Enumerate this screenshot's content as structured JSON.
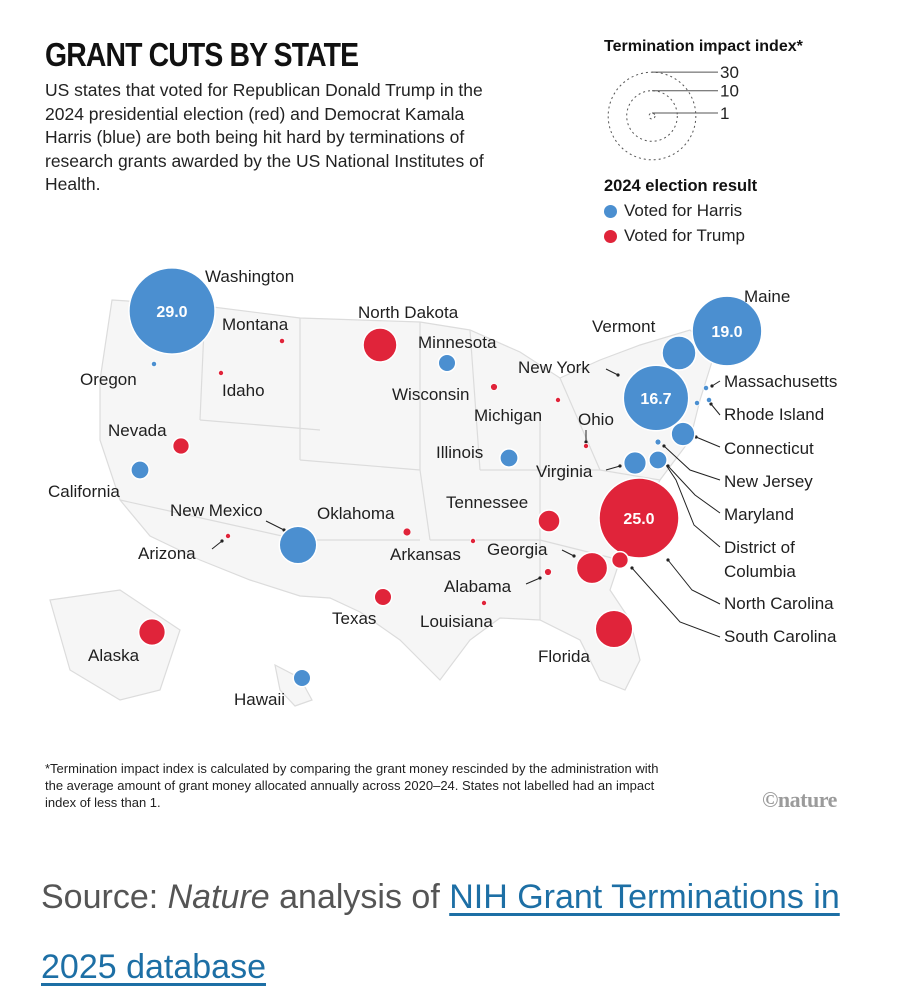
{
  "header": {
    "title": "GRANT CUTS BY STATE",
    "subtitle": "US states that voted for Republican Donald Trump in the 2024 presidential election (red) and Democrat Kamala Harris (blue) are both being hit hard by terminations of research grants awarded by the US National Institutes of Health."
  },
  "legend": {
    "size_title": "Termination impact index*",
    "size_rings": [
      "30",
      "10",
      "1"
    ],
    "election_title": "2024 election result",
    "harris_label": "Voted for Harris",
    "trump_label": "Voted for Trump"
  },
  "colors": {
    "harris": "#4b8fd0",
    "trump": "#e0243a",
    "map_line": "#dcdcdc",
    "leader": "#222222"
  },
  "footnote": "*Termination impact index is calculated by comparing the grant money rescinded by the administration with the average amount of grant money allocated annually across 2020–24. States not labelled had an impact index of less than 1.",
  "credit": "©nature",
  "source": {
    "prefix": "Source: ",
    "italic": "Nature",
    "middle": " analysis of ",
    "link_text": "NIH Grant Terminations in 2025 database"
  },
  "chart_data": {
    "type": "bubble-map",
    "title": "GRANT CUTS BY STATE",
    "size_variable": "Termination impact index",
    "color_variable": "2024 election result",
    "states": [
      {
        "name": "Washington",
        "party": "harris",
        "index": 29.0,
        "value_label": "29.0"
      },
      {
        "name": "Maine",
        "party": "harris",
        "index": 19.0,
        "value_label": "19.0"
      },
      {
        "name": "New York",
        "party": "harris",
        "index": 16.7,
        "value_label": "16.7"
      },
      {
        "name": "North Carolina",
        "party": "trump",
        "index": 25.0,
        "value_label": "25.0"
      },
      {
        "name": "Vermont",
        "party": "harris",
        "index": 4.5
      },
      {
        "name": "New Mexico",
        "party": "harris",
        "index": 5.5
      },
      {
        "name": "Florida",
        "party": "trump",
        "index": 5.5
      },
      {
        "name": "Georgia",
        "party": "trump",
        "index": 3.8
      },
      {
        "name": "North Dakota",
        "party": "trump",
        "index": 4.5
      },
      {
        "name": "Alaska",
        "party": "trump",
        "index": 2.8
      },
      {
        "name": "Connecticut",
        "party": "harris",
        "index": 2.2
      },
      {
        "name": "Virginia",
        "party": "harris",
        "index": 2.0
      },
      {
        "name": "Tennessee",
        "party": "trump",
        "index": 1.9
      },
      {
        "name": "Maryland",
        "party": "harris",
        "index": 1.3
      },
      {
        "name": "California",
        "party": "harris",
        "index": 1.3
      },
      {
        "name": "Illinois",
        "party": "harris",
        "index": 1.3
      },
      {
        "name": "Minnesota",
        "party": "harris",
        "index": 1.2
      },
      {
        "name": "Hawaii",
        "party": "harris",
        "index": 1.2
      },
      {
        "name": "South Carolina",
        "party": "trump",
        "index": 1.1
      },
      {
        "name": "Nevada",
        "party": "trump",
        "index": 1.1
      },
      {
        "name": "Texas",
        "party": "trump",
        "index": 1.2
      },
      {
        "name": "Oklahoma",
        "party": "trump",
        "index": 0.9
      },
      {
        "name": "Wisconsin",
        "party": "trump",
        "index": 0.7
      },
      {
        "name": "Alabama",
        "party": "trump",
        "index": 0.7
      },
      {
        "name": "Montana",
        "party": "trump",
        "index": 0.4
      },
      {
        "name": "Oregon",
        "party": "harris",
        "index": 0.4
      },
      {
        "name": "Massachusetts",
        "party": "harris",
        "index": 0.4
      },
      {
        "name": "Rhode Island",
        "party": "harris",
        "index": 0.4
      },
      {
        "name": "New Jersey",
        "party": "harris",
        "index": 0.5
      },
      {
        "name": "District of Columbia",
        "party": "harris",
        "index": 0.4
      },
      {
        "name": "Arizona",
        "party": "trump",
        "index": 0.3
      },
      {
        "name": "Idaho",
        "party": "trump",
        "index": 0.2
      },
      {
        "name": "Michigan",
        "party": "trump",
        "index": 0.2
      },
      {
        "name": "Ohio",
        "party": "trump",
        "index": 0.2
      },
      {
        "name": "Arkansas",
        "party": "trump",
        "index": 0.2
      },
      {
        "name": "Louisiana",
        "party": "trump",
        "index": 0.2
      }
    ]
  }
}
